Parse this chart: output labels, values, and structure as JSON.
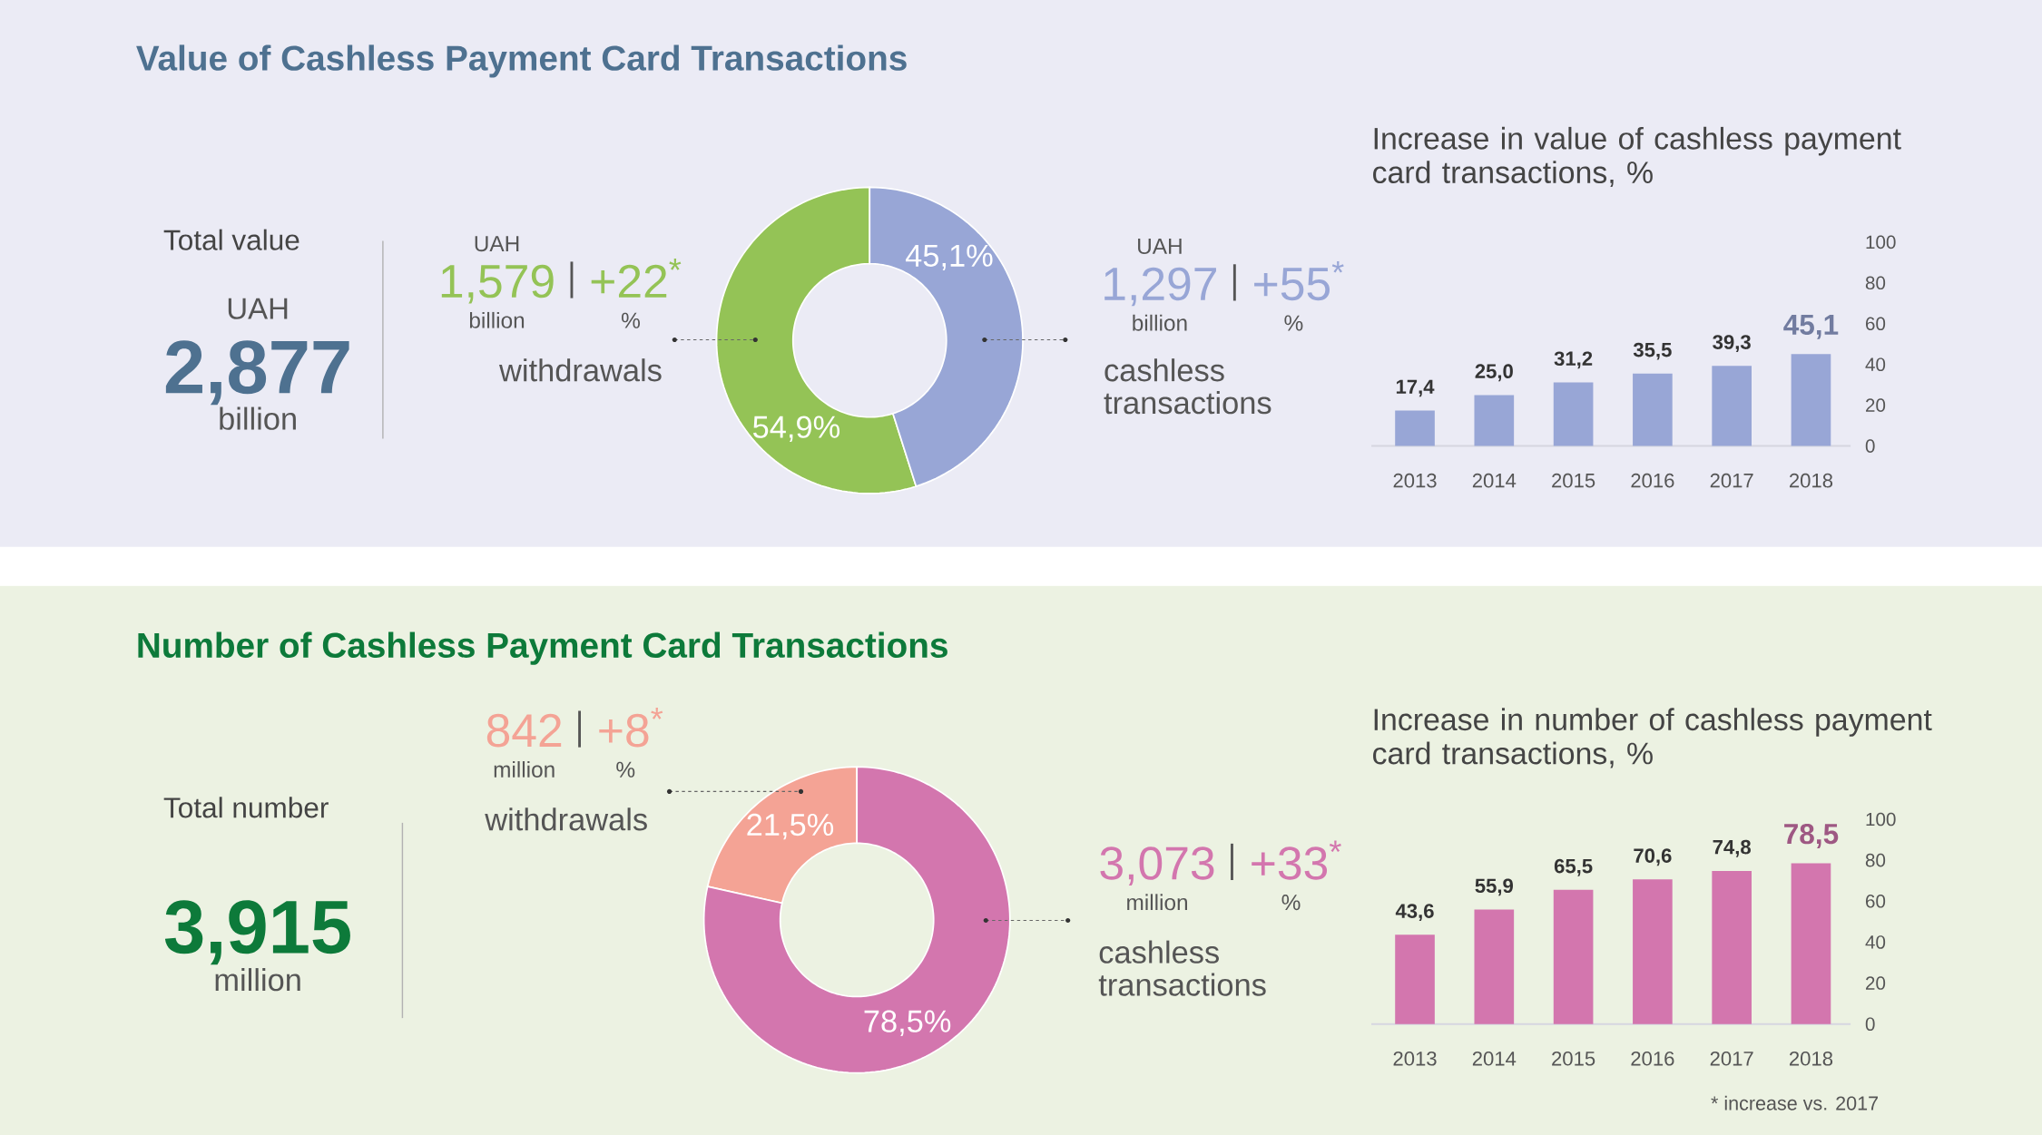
{
  "chart_data": [
    {
      "type": "other",
      "title": "Value of Cashless Payment Card Transactions",
      "annotations": [
        "Total value",
        "UAH",
        "2,877",
        "billion"
      ],
      "color": "#4e7190"
    },
    {
      "type": "donut",
      "categories": [
        "withdrawals",
        "cashless transactions"
      ],
      "values": [
        54.9,
        45.1
      ],
      "colors": [
        "#94c356",
        "#98a6d6"
      ],
      "value_labels": [
        "54,9%",
        "45,1%"
      ],
      "annotations": [
        "UAH",
        "1,579",
        "+22$^{*}$",
        "billion",
        "%",
        "UAH",
        "1,297",
        "+55$^{*}$",
        "billion",
        "%"
      ]
    },
    {
      "type": "bar",
      "title": "Increase in value of cashless payment card transactions, %",
      "categories": [
        "2013",
        "2014",
        "2015",
        "2016",
        "2017",
        "2018"
      ],
      "values": [
        17.4,
        25.0,
        31.2,
        35.5,
        39.3,
        45.1
      ],
      "color": "#98a6d6",
      "value_labels": [
        "17,4",
        "25,0",
        "31,2",
        "35,5",
        "39,3",
        "45,1"
      ],
      "ylim": [
        0,
        100
      ],
      "yticks": [
        0,
        20,
        40,
        60,
        80,
        100
      ]
    },
    {
      "type": "other",
      "title": "Number of Cashless Payment Card Transactions",
      "annotations": [
        "Total number",
        "3,915",
        "million"
      ],
      "color": "#0d7a3a"
    },
    {
      "type": "donut",
      "categories": [
        "withdrawals",
        "cashless transactions"
      ],
      "values": [
        21.5,
        78.5
      ],
      "colors": [
        "#f4a395",
        "#d376ae"
      ],
      "value_labels": [
        "21,5%",
        "78,5%"
      ],
      "annotations": [
        "842",
        "+8$^{*}$",
        "million",
        "%",
        "3,073",
        "+33$^{*}$",
        "million",
        "%"
      ]
    },
    {
      "type": "bar",
      "title": "Increase in number of cashless payment card transactions, %",
      "categories": [
        "2013",
        "2014",
        "2015",
        "2016",
        "2017",
        "2018"
      ],
      "values": [
        43.6,
        55.9,
        65.5,
        70.6,
        74.8,
        78.5
      ],
      "color": "#d376ae",
      "value_labels": [
        "43,6",
        "55,9",
        "65,5",
        "70,6",
        "74,8",
        "78,5"
      ],
      "ylim": [
        0,
        100
      ],
      "yticks": [
        0,
        20,
        40,
        60,
        80,
        100
      ],
      "annotations": [
        "* increase vs. 2017"
      ]
    }
  ]
}
